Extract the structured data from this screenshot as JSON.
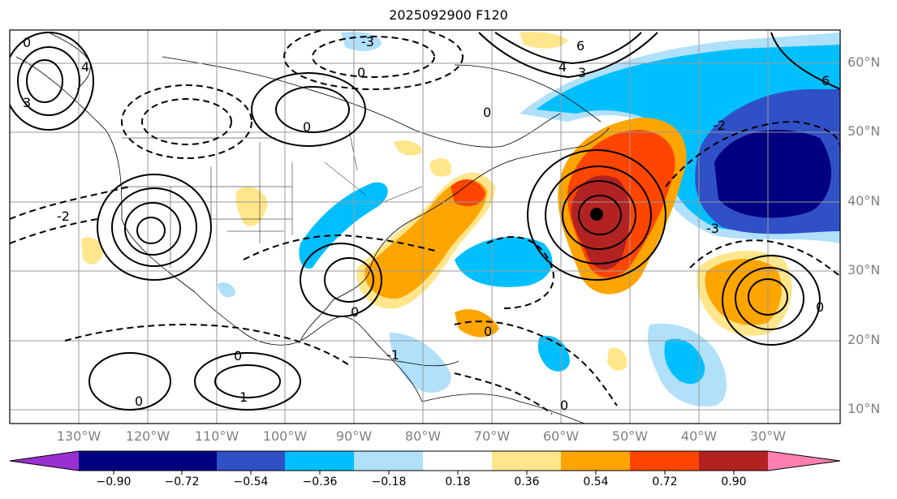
{
  "title": "2025092900 F120",
  "lon_labels": [
    "130°W",
    "120°W",
    "110°W",
    "100°W",
    "90°W",
    "80°W",
    "70°W",
    "60°W",
    "50°W",
    "40°W",
    "30°W"
  ],
  "lat_labels": [
    "60°N",
    "50°N",
    "40°N",
    "30°N",
    "20°N",
    "10°N"
  ],
  "colorbar": {
    "ticks": [
      "−0.90",
      "−0.72",
      "−0.54",
      "−0.36",
      "−0.18",
      "0.18",
      "0.36",
      "0.54",
      "0.72",
      "0.90"
    ],
    "colors": [
      "#9b30d0",
      "#000080",
      "#3050c8",
      "#00bfff",
      "#b0e0fa",
      "#ffffff",
      "#ffe68c",
      "#ffa500",
      "#ff4500",
      "#b22222",
      "#ff80b0"
    ]
  },
  "contour_labels": [
    "0",
    "-2",
    "4",
    "3",
    "1",
    "-1",
    "6",
    "-3"
  ],
  "marker": "storm-center"
}
